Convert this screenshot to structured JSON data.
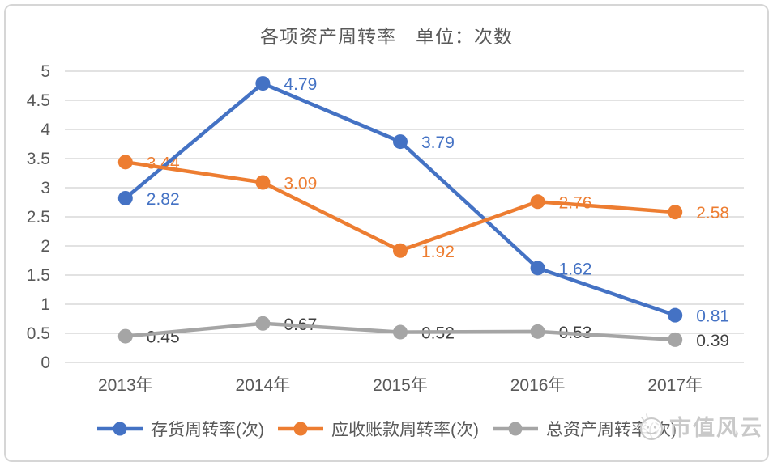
{
  "title": "各项资产周转率　单位：次数",
  "watermark": {
    "text": "市值风云",
    "icon": "smiley-face-logo"
  },
  "colors": {
    "gridline": "#d9d9d9",
    "axis_text": "#595959",
    "legend_text": "#595959",
    "frame_border": "#d6d6d6",
    "watermark": "#c9c9c9"
  },
  "chart_data": {
    "type": "line",
    "title": "各项资产周转率　单位：次数",
    "categories": [
      "2013年",
      "2014年",
      "2015年",
      "2016年",
      "2017年"
    ],
    "series": [
      {
        "name": "存货周转率(次)",
        "color": "#4472C4",
        "label_color": "#4472C4",
        "values": [
          2.82,
          4.79,
          3.79,
          1.62,
          0.81
        ]
      },
      {
        "name": "应收账款周转率(次)",
        "color": "#ED7D31",
        "label_color": "#ED7D31",
        "values": [
          3.44,
          3.09,
          1.92,
          2.76,
          2.58
        ]
      },
      {
        "name": "总资产周转率(次)",
        "color": "#A5A5A5",
        "label_color": "#404040",
        "values": [
          0.45,
          0.67,
          0.52,
          0.53,
          0.39
        ]
      }
    ],
    "ylim": [
      0,
      5
    ],
    "ytick_step": 0.5,
    "yticks": [
      "0",
      "0.5",
      "1",
      "1.5",
      "2",
      "2.5",
      "3",
      "3.5",
      "4",
      "4.5",
      "5"
    ],
    "grid": true,
    "data_labels": true,
    "legend_position": "bottom"
  }
}
